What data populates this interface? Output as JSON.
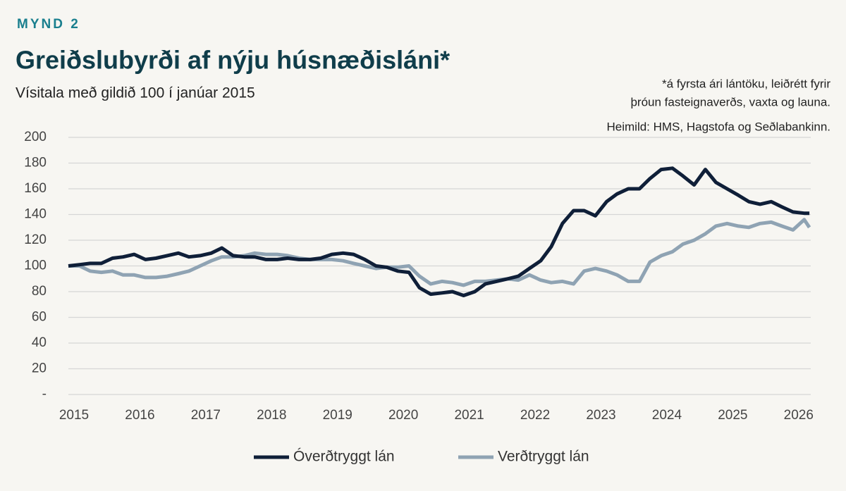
{
  "chart_data": {
    "type": "line",
    "label": "MYND 2",
    "title": "Greiðslubyrði af nýju húsnæðisláni*",
    "subtitle": "Vísitala með gildið 100 í janúar 2015",
    "notes": [
      "*á fyrsta ári lántöku, leiðrétt fyrir",
      "þróun fasteignaverðs, vaxta og launa.",
      "Heimild: HMS, Hagstofa og Seðlabankinn."
    ],
    "x": [
      2015.0,
      2015.17,
      2015.33,
      2015.5,
      2015.67,
      2015.83,
      2016.0,
      2016.17,
      2016.33,
      2016.5,
      2016.67,
      2016.83,
      2017.0,
      2017.17,
      2017.33,
      2017.5,
      2017.67,
      2017.83,
      2018.0,
      2018.17,
      2018.33,
      2018.5,
      2018.67,
      2018.83,
      2019.0,
      2019.17,
      2019.33,
      2019.5,
      2019.67,
      2019.83,
      2020.0,
      2020.17,
      2020.33,
      2020.5,
      2020.67,
      2020.83,
      2021.0,
      2021.17,
      2021.33,
      2021.5,
      2021.67,
      2021.83,
      2022.0,
      2022.17,
      2022.33,
      2022.5,
      2022.67,
      2022.83,
      2023.0,
      2023.17,
      2023.33,
      2023.5,
      2023.67,
      2023.83,
      2024.0,
      2024.17,
      2024.33,
      2024.5,
      2024.67,
      2024.83,
      2025.0,
      2025.17,
      2025.33,
      2025.5,
      2025.67,
      2025.83,
      2026.0,
      2026.17,
      2026.25
    ],
    "series": [
      {
        "name": "Óverðtryggt lán",
        "color": "#0f1f38",
        "values": [
          100,
          101,
          102,
          102,
          106,
          107,
          109,
          105,
          106,
          108,
          110,
          107,
          108,
          110,
          114,
          108,
          107,
          107,
          105,
          105,
          106,
          105,
          105,
          106,
          109,
          110,
          109,
          105,
          100,
          99,
          96,
          95,
          83,
          78,
          79,
          80,
          77,
          80,
          86,
          88,
          90,
          92,
          98,
          104,
          115,
          133,
          143,
          143,
          139,
          150,
          156,
          160,
          160,
          168,
          175,
          176,
          170,
          163,
          175,
          165,
          160,
          155,
          150,
          148,
          150,
          146,
          142,
          141,
          141
        ]
      },
      {
        "name": "Verðtryggt lán",
        "color": "#8fa3b3",
        "values": [
          100,
          100,
          96,
          95,
          96,
          93,
          93,
          91,
          91,
          92,
          94,
          96,
          100,
          104,
          107,
          107,
          108,
          110,
          109,
          109,
          108,
          106,
          105,
          105,
          105,
          104,
          102,
          100,
          98,
          99,
          99,
          100,
          92,
          86,
          88,
          87,
          85,
          88,
          88,
          89,
          90,
          89,
          93,
          89,
          87,
          88,
          86,
          96,
          98,
          96,
          93,
          88,
          88,
          103,
          108,
          111,
          117,
          120,
          125,
          131,
          133,
          131,
          130,
          133,
          134,
          131,
          128,
          136,
          130
        ]
      }
    ],
    "xlim": [
      2015,
      2026.27
    ],
    "xticks": [
      2015,
      2016,
      2017,
      2018,
      2019,
      2020,
      2021,
      2022,
      2023,
      2024,
      2025,
      2026
    ],
    "ylim": [
      0,
      200
    ],
    "yticks": [
      {
        "value": 0,
        "label": "-"
      },
      20,
      40,
      60,
      80,
      100,
      120,
      140,
      160,
      180,
      200
    ],
    "grid": true
  }
}
